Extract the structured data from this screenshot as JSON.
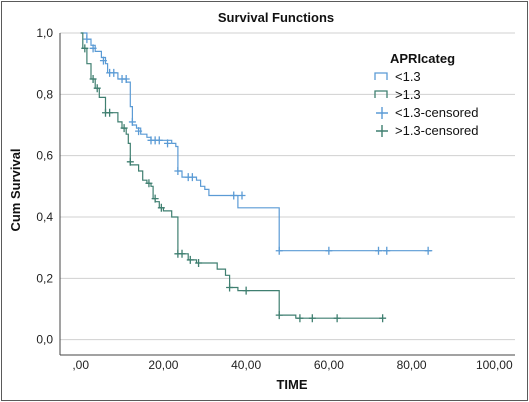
{
  "chart_data": {
    "type": "line",
    "subtype": "kaplan-meier-step",
    "title": "Survival Functions",
    "xlabel": "TIME",
    "ylabel": "Cum Survival",
    "xlim": [
      -5,
      105
    ],
    "ylim": [
      -0.05,
      1.0
    ],
    "x_ticks": [
      0,
      20,
      40,
      60,
      80,
      100
    ],
    "x_tick_labels": [
      ",00",
      "20,00",
      "40,00",
      "60,00",
      "80,00",
      "100,00"
    ],
    "y_ticks": [
      0.0,
      0.2,
      0.4,
      0.6,
      0.8,
      1.0
    ],
    "y_tick_labels": [
      "0,0",
      "0,2",
      "0,4",
      "0,6",
      "0,8",
      "1,0"
    ],
    "grid": "horizontal",
    "legend": {
      "title": "APRIcateg",
      "placement": "top-right",
      "entries": [
        "<1.3",
        ">1.3",
        "<1.3-censored",
        ">1.3-censored"
      ]
    },
    "series": [
      {
        "name": "<1.3",
        "color": "#5b9bd5",
        "steps": [
          [
            0,
            1.0
          ],
          [
            1.5,
            0.98
          ],
          [
            2.5,
            0.96
          ],
          [
            3.5,
            0.94
          ],
          [
            5,
            0.92
          ],
          [
            6,
            0.9
          ],
          [
            6.5,
            0.87
          ],
          [
            9,
            0.85
          ],
          [
            11,
            0.84
          ],
          [
            12,
            0.76
          ],
          [
            12.5,
            0.7
          ],
          [
            13.5,
            0.69
          ],
          [
            14.5,
            0.67
          ],
          [
            16,
            0.66
          ],
          [
            17,
            0.65
          ],
          [
            22,
            0.64
          ],
          [
            23,
            0.63
          ],
          [
            23.5,
            0.55
          ],
          [
            24.5,
            0.53
          ],
          [
            28,
            0.52
          ],
          [
            29,
            0.5
          ],
          [
            30,
            0.49
          ],
          [
            31,
            0.47
          ],
          [
            38,
            0.43
          ],
          [
            48,
            0.29
          ],
          [
            85,
            0.29
          ]
        ],
        "censored": [
          [
            1.5,
            0.98
          ],
          [
            3,
            0.95
          ],
          [
            5.5,
            0.91
          ],
          [
            7,
            0.87
          ],
          [
            8,
            0.87
          ],
          [
            10,
            0.85
          ],
          [
            11,
            0.85
          ],
          [
            12.5,
            0.71
          ],
          [
            14,
            0.68
          ],
          [
            17,
            0.65
          ],
          [
            18,
            0.65
          ],
          [
            19,
            0.65
          ],
          [
            21,
            0.64
          ],
          [
            23.5,
            0.55
          ],
          [
            26,
            0.53
          ],
          [
            27,
            0.53
          ],
          [
            37,
            0.47
          ],
          [
            39,
            0.47
          ],
          [
            48,
            0.29
          ],
          [
            60,
            0.29
          ],
          [
            72,
            0.29
          ],
          [
            74,
            0.29
          ],
          [
            84,
            0.29
          ]
        ]
      },
      {
        "name": ">1.3",
        "color": "#3f7f70",
        "steps": [
          [
            0,
            1.0
          ],
          [
            0.5,
            0.95
          ],
          [
            1.5,
            0.9
          ],
          [
            2.5,
            0.85
          ],
          [
            3.5,
            0.82
          ],
          [
            4.5,
            0.79
          ],
          [
            6,
            0.74
          ],
          [
            9,
            0.71
          ],
          [
            10,
            0.69
          ],
          [
            11,
            0.67
          ],
          [
            11.5,
            0.64
          ],
          [
            12,
            0.57
          ],
          [
            14,
            0.55
          ],
          [
            15,
            0.52
          ],
          [
            16,
            0.51
          ],
          [
            17,
            0.5
          ],
          [
            17.5,
            0.46
          ],
          [
            18,
            0.45
          ],
          [
            19,
            0.43
          ],
          [
            20,
            0.42
          ],
          [
            22,
            0.4
          ],
          [
            23.5,
            0.28
          ],
          [
            26,
            0.26
          ],
          [
            28,
            0.25
          ],
          [
            33,
            0.23
          ],
          [
            35,
            0.21
          ],
          [
            36,
            0.17
          ],
          [
            38,
            0.16
          ],
          [
            48,
            0.08
          ],
          [
            52,
            0.07
          ],
          [
            73,
            0.07
          ]
        ],
        "censored": [
          [
            1,
            0.95
          ],
          [
            3,
            0.85
          ],
          [
            4,
            0.82
          ],
          [
            6,
            0.74
          ],
          [
            7,
            0.74
          ],
          [
            10.5,
            0.69
          ],
          [
            12,
            0.58
          ],
          [
            16.5,
            0.51
          ],
          [
            18,
            0.46
          ],
          [
            19.5,
            0.43
          ],
          [
            23.5,
            0.28
          ],
          [
            24.5,
            0.28
          ],
          [
            26.5,
            0.26
          ],
          [
            28.5,
            0.25
          ],
          [
            36,
            0.17
          ],
          [
            40,
            0.16
          ],
          [
            48,
            0.08
          ],
          [
            53,
            0.07
          ],
          [
            56,
            0.07
          ],
          [
            62,
            0.07
          ],
          [
            73,
            0.07
          ]
        ]
      }
    ]
  }
}
